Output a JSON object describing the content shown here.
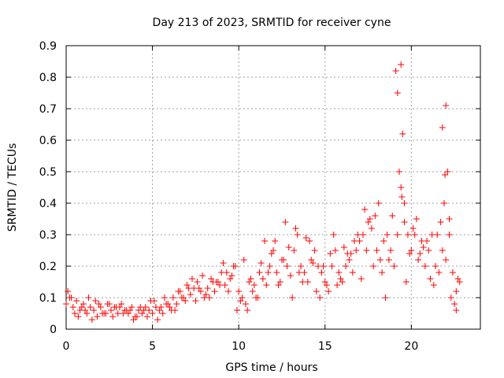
{
  "chart_data": {
    "type": "scatter",
    "title": "Day 213 of 2023, SRMTID for receiver cyne",
    "xlabel": "GPS time / hours",
    "ylabel": "SRMTID / TECUs",
    "xlim": [
      0,
      24
    ],
    "ylim": [
      0,
      0.9
    ],
    "xticks": [
      0,
      5,
      10,
      15,
      20
    ],
    "xtick_labels": [
      "0",
      "5",
      "10",
      "15",
      "20"
    ],
    "yticks": [
      0,
      0.1,
      0.2,
      0.3,
      0.4,
      0.5,
      0.6,
      0.7,
      0.8,
      0.9
    ],
    "ytick_labels": [
      "0",
      "0.1",
      "0.2",
      "0.3",
      "0.4",
      "0.5",
      "0.6",
      "0.7",
      "0.8",
      "0.9"
    ],
    "grid": true,
    "marker": "plus",
    "color": "#ff0000",
    "series": [
      {
        "name": "SRMTID",
        "x": [
          0.0,
          0.2,
          0.4,
          0.6,
          0.8,
          1.0,
          1.2,
          1.4,
          1.6,
          1.8,
          2.0,
          2.2,
          2.4,
          2.6,
          2.8,
          3.0,
          3.2,
          3.4,
          3.6,
          3.8,
          4.0,
          4.2,
          4.4,
          4.6,
          4.8,
          5.0,
          5.2,
          5.4,
          5.6,
          5.8,
          6.0,
          6.2,
          6.4,
          6.6,
          6.8,
          7.0,
          7.2,
          7.4,
          7.6,
          7.8,
          8.0,
          8.2,
          8.4,
          8.6,
          8.8,
          9.0,
          9.2,
          9.4,
          9.6,
          9.8,
          10.0,
          10.2,
          10.4,
          10.6,
          10.8,
          11.0,
          11.2,
          11.4,
          11.6,
          11.8,
          12.0,
          12.2,
          12.4,
          12.6,
          12.8,
          13.0,
          13.2,
          13.4,
          13.6,
          13.8,
          14.0,
          14.2,
          14.4,
          14.6,
          14.8,
          15.0,
          15.2,
          15.4,
          15.6,
          15.8,
          16.0,
          16.2,
          16.4,
          16.6,
          16.8,
          17.0,
          17.2,
          17.4,
          17.6,
          17.8,
          18.0,
          18.2,
          18.4,
          18.6,
          18.8,
          19.0,
          19.2,
          19.3,
          19.4,
          19.5,
          19.6,
          19.8,
          20.0,
          20.2,
          20.4,
          20.6,
          20.8,
          21.0,
          21.2,
          21.4,
          21.6,
          21.8,
          21.9,
          22.0,
          22.1,
          22.2,
          22.4,
          22.6,
          22.8,
          0.1,
          0.5,
          0.9,
          1.3,
          1.7,
          2.1,
          2.5,
          2.9,
          3.3,
          3.7,
          4.1,
          4.5,
          4.9,
          5.3,
          5.7,
          6.1,
          6.5,
          6.9,
          7.3,
          7.7,
          8.1,
          8.5,
          8.9,
          9.3,
          9.7,
          10.1,
          10.5,
          10.9,
          11.3,
          11.7,
          12.1,
          12.5,
          12.9,
          13.3,
          13.7,
          14.1,
          14.5,
          14.9,
          15.3,
          15.7,
          16.1,
          16.5,
          16.9,
          17.3,
          17.7,
          18.1,
          18.5,
          18.9,
          19.2,
          19.4,
          19.6,
          19.9,
          20.3,
          20.7,
          21.1,
          21.5,
          21.8,
          22.0,
          22.3,
          22.6,
          0.3,
          0.7,
          1.1,
          1.5,
          1.9,
          2.3,
          2.7,
          3.1,
          3.5,
          3.9,
          4.3,
          4.7,
          5.1,
          5.5,
          5.9,
          6.3,
          6.7,
          7.1,
          7.5,
          7.9,
          8.3,
          8.7,
          9.1,
          9.5,
          9.9,
          10.3,
          10.7,
          11.1,
          11.5,
          11.9,
          12.3,
          12.7,
          13.1,
          13.5,
          13.9,
          14.3,
          14.7,
          15.1,
          15.5,
          15.9,
          16.3,
          16.7,
          17.1,
          17.5,
          17.9,
          18.3,
          18.7,
          19.1,
          19.45,
          19.7,
          20.1,
          20.5,
          20.9,
          21.3,
          21.7,
          21.95,
          22.2,
          22.5,
          22.7
        ],
        "y": [
          0.08,
          0.1,
          0.07,
          0.09,
          0.06,
          0.08,
          0.05,
          0.07,
          0.06,
          0.04,
          0.07,
          0.05,
          0.08,
          0.06,
          0.07,
          0.05,
          0.08,
          0.06,
          0.05,
          0.07,
          0.04,
          0.06,
          0.05,
          0.07,
          0.06,
          0.05,
          0.07,
          0.06,
          0.05,
          0.08,
          0.07,
          0.1,
          0.08,
          0.12,
          0.1,
          0.14,
          0.11,
          0.13,
          0.15,
          0.12,
          0.1,
          0.13,
          0.16,
          0.12,
          0.15,
          0.18,
          0.14,
          0.12,
          0.17,
          0.2,
          0.12,
          0.1,
          0.08,
          0.15,
          0.12,
          0.1,
          0.18,
          0.16,
          0.14,
          0.2,
          0.25,
          0.18,
          0.15,
          0.22,
          0.2,
          0.17,
          0.25,
          0.3,
          0.2,
          0.18,
          0.15,
          0.22,
          0.25,
          0.2,
          0.18,
          0.15,
          0.12,
          0.2,
          0.25,
          0.18,
          0.15,
          0.2,
          0.22,
          0.18,
          0.25,
          0.28,
          0.3,
          0.25,
          0.35,
          0.2,
          0.25,
          0.22,
          0.28,
          0.3,
          0.25,
          0.2,
          0.3,
          0.5,
          0.84,
          0.62,
          0.4,
          0.3,
          0.25,
          0.3,
          0.22,
          0.28,
          0.2,
          0.25,
          0.3,
          0.2,
          0.18,
          0.25,
          0.4,
          0.71,
          0.5,
          0.3,
          0.18,
          0.12,
          0.15,
          0.12,
          0.05,
          0.07,
          0.1,
          0.09,
          0.05,
          0.08,
          0.07,
          0.05,
          0.06,
          0.04,
          0.06,
          0.09,
          0.03,
          0.1,
          0.06,
          0.12,
          0.09,
          0.16,
          0.13,
          0.11,
          0.15,
          0.14,
          0.18,
          0.2,
          0.09,
          0.06,
          0.14,
          0.21,
          0.18,
          0.28,
          0.22,
          0.26,
          0.32,
          0.15,
          0.28,
          0.12,
          0.2,
          0.24,
          0.14,
          0.26,
          0.24,
          0.3,
          0.38,
          0.32,
          0.4,
          0.1,
          0.36,
          0.75,
          0.45,
          0.34,
          0.24,
          0.35,
          0.26,
          0.16,
          0.3,
          0.64,
          0.22,
          0.1,
          0.06,
          0.1,
          0.04,
          0.06,
          0.03,
          0.08,
          0.05,
          0.04,
          0.07,
          0.06,
          0.03,
          0.07,
          0.04,
          0.09,
          0.07,
          0.08,
          0.06,
          0.1,
          0.13,
          0.09,
          0.17,
          0.1,
          0.15,
          0.21,
          0.16,
          0.06,
          0.22,
          0.16,
          0.1,
          0.28,
          0.24,
          0.14,
          0.34,
          0.1,
          0.18,
          0.29,
          0.21,
          0.1,
          0.14,
          0.3,
          0.16,
          0.24,
          0.28,
          0.16,
          0.34,
          0.36,
          0.18,
          0.22,
          0.82,
          0.42,
          0.15,
          0.32,
          0.24,
          0.28,
          0.14,
          0.34,
          0.49,
          0.35,
          0.08,
          0.16
        ]
      }
    ]
  }
}
